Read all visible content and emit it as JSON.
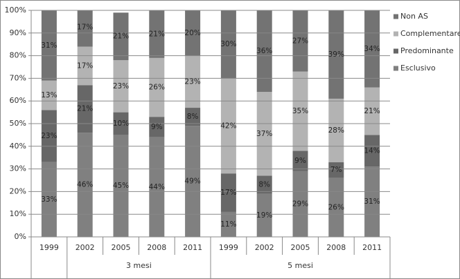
{
  "chart_data": {
    "type": "stacked_bar",
    "groups": [
      {
        "name": null,
        "categories": [
          "1999"
        ]
      },
      {
        "name": "3 mesi",
        "categories": [
          "2002",
          "2005",
          "2008",
          "2011"
        ]
      },
      {
        "name": "5 mesi",
        "categories": [
          "1999",
          "2002",
          "2005",
          "2008",
          "2011"
        ]
      }
    ],
    "series": [
      {
        "name": "Esclusivo",
        "color": "#808080",
        "values": [
          33,
          46,
          45,
          44,
          49,
          11,
          19,
          29,
          26,
          31
        ],
        "value_labels": [
          "33%",
          "46%",
          "45%",
          "44%",
          "49%",
          "11%",
          "19%",
          "29%",
          "26%",
          "31%"
        ]
      },
      {
        "name": "Predominante",
        "color": "#676767",
        "values": [
          23,
          21,
          10,
          9,
          8,
          17,
          8,
          9,
          7,
          14
        ],
        "value_labels": [
          "23%",
          "21%",
          "10%",
          "9%",
          "8%",
          "17%",
          "8%",
          "9%",
          "7%",
          "14%"
        ]
      },
      {
        "name": "Complementare",
        "color": "#b3b3b3",
        "values": [
          13,
          17,
          23,
          26,
          23,
          42,
          37,
          35,
          28,
          21
        ],
        "value_labels": [
          "13%",
          "17%",
          "23%",
          "26%",
          "23%",
          "42%",
          "37%",
          "35%",
          "28%",
          "21%"
        ]
      },
      {
        "name": "Non AS",
        "color": "#737373",
        "values": [
          31,
          17,
          21,
          21,
          20,
          30,
          36,
          27,
          39,
          34
        ],
        "value_labels": [
          "31%",
          "17%",
          "21%",
          "21%",
          "20%",
          "30%",
          "36%",
          "27%",
          "39%",
          "34%"
        ]
      }
    ],
    "ylim": [
      0,
      100
    ],
    "yticks": [
      {
        "value": 0,
        "label": "0%"
      },
      {
        "value": 10,
        "label": "10%"
      },
      {
        "value": 20,
        "label": "20%"
      },
      {
        "value": 30,
        "label": "30%"
      },
      {
        "value": 40,
        "label": "40%"
      },
      {
        "value": 50,
        "label": "50%"
      },
      {
        "value": 60,
        "label": "60%"
      },
      {
        "value": 70,
        "label": "70%"
      },
      {
        "value": 80,
        "label": "80%"
      },
      {
        "value": 90,
        "label": "90%"
      },
      {
        "value": 100,
        "label": "100%"
      }
    ],
    "grid": true,
    "legend": "right"
  }
}
